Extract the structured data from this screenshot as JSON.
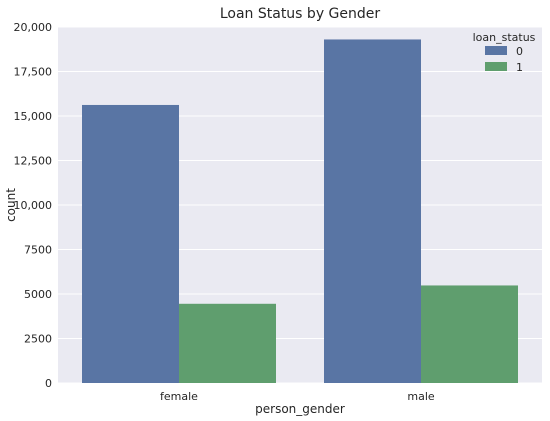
{
  "chart_data": {
    "type": "bar",
    "title": "Loan Status by Gender",
    "xlabel": "person_gender",
    "ylabel": "count",
    "categories": [
      "female",
      "male"
    ],
    "series": [
      {
        "name": "0",
        "values": [
          15620,
          19300
        ],
        "color": "#5975a4"
      },
      {
        "name": "1",
        "values": [
          4450,
          5480
        ],
        "color": "#5f9e6e"
      }
    ],
    "ylim": [
      0,
      20000
    ],
    "yticks": [
      0,
      2500,
      5000,
      7500,
      10000,
      12500,
      15000,
      17500,
      20000
    ],
    "ytick_labels": [
      "0",
      "2500",
      "5000",
      "7500",
      "10,000",
      "12,500",
      "15,000",
      "17,500",
      "20,000"
    ],
    "grid": true,
    "background": "#eaeaf2",
    "legend": {
      "title": "loan_status",
      "placement": "top-right"
    }
  }
}
